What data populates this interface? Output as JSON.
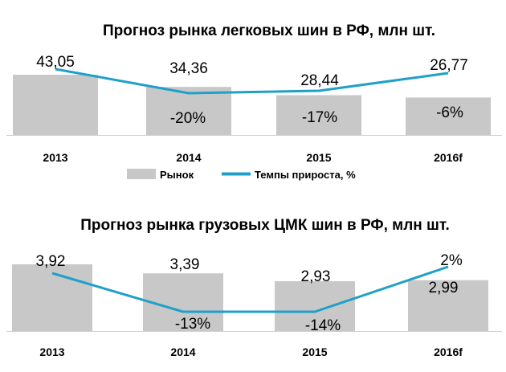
{
  "chart_data": [
    {
      "type": "bar",
      "title": "Прогноз рынка легковых шин в РФ, млн шт.",
      "categories": [
        "2013",
        "2014",
        "2015",
        "2016f"
      ],
      "series": [
        {
          "name": "Рынок",
          "type": "bar",
          "values": [
            43.05,
            34.36,
            28.44,
            26.77
          ],
          "labels": [
            "43,05",
            "34,36",
            "28,44",
            "26,77"
          ],
          "color": "#c8c8c8"
        },
        {
          "name": "Темпы прироста, %",
          "type": "line",
          "values": [
            null,
            -20,
            -17,
            -6
          ],
          "labels": [
            "",
            "-20%",
            "-17%",
            "-6%"
          ],
          "color": "#1fa0c8"
        }
      ],
      "legend": {
        "position": "bottom",
        "items": [
          "Рынок",
          "Темпы прироста, %"
        ]
      }
    },
    {
      "type": "bar",
      "title": "Прогноз рынка  грузовых ЦМК шин в РФ, млн шт.",
      "categories": [
        "2013",
        "2014",
        "2015",
        "2016f"
      ],
      "series": [
        {
          "name": "Рынок",
          "type": "bar",
          "values": [
            3.92,
            3.39,
            2.93,
            2.99
          ],
          "labels": [
            "3,92",
            "3,39",
            "2,93",
            "2,99"
          ],
          "color": "#c8c8c8"
        },
        {
          "name": "Темпы прироста, %",
          "type": "line",
          "values": [
            null,
            -13,
            -14,
            2
          ],
          "labels": [
            "",
            "-13%",
            "-14%",
            "2%"
          ],
          "color": "#1fa0c8"
        }
      ]
    }
  ]
}
